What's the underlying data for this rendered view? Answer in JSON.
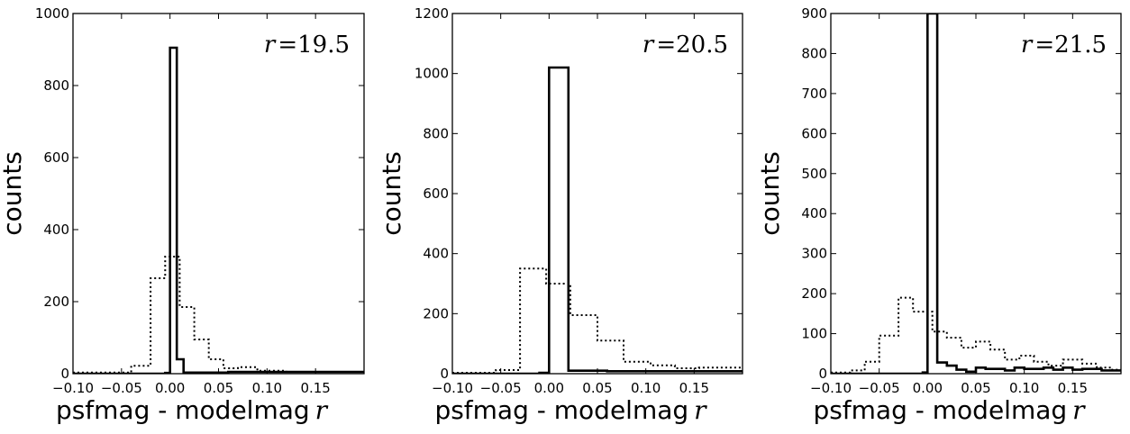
{
  "chart_data": [
    {
      "type": "histogram",
      "annotation": {
        "var": "r",
        "op": "=",
        "value": "19.5"
      },
      "xlabel": {
        "text": "psfmag - modelmag",
        "var": "r"
      },
      "ylabel": "counts",
      "xlim": [
        -0.1,
        0.2
      ],
      "ylim": [
        0,
        1000
      ],
      "xticks": [
        -0.1,
        -0.05,
        0.0,
        0.05,
        0.1,
        0.15
      ],
      "xtick_labels": [
        "−0.10",
        "−0.05",
        "0.00",
        "0.05",
        "0.10",
        "0.15"
      ],
      "yticks": [
        0,
        200,
        400,
        600,
        800,
        1000
      ],
      "ytick_labels": [
        "0",
        "200",
        "400",
        "600",
        "800",
        "1000"
      ],
      "series": [
        {
          "style": "solid",
          "x": [
            -0.1,
            -0.005,
            -0.005,
            0.0,
            0.0,
            0.007,
            0.007,
            0.014,
            0.014,
            0.06,
            0.06,
            0.2
          ],
          "y": [
            0,
            0,
            2,
            2,
            905,
            905,
            40,
            40,
            3,
            3,
            5,
            5
          ]
        },
        {
          "style": "dotted",
          "x": [
            -0.1,
            -0.04,
            -0.04,
            -0.02,
            -0.02,
            -0.005,
            -0.005,
            0.01,
            0.01,
            0.025,
            0.025,
            0.04,
            0.04,
            0.055,
            0.055,
            0.07,
            0.07,
            0.09,
            0.09,
            0.12,
            0.12,
            0.2
          ],
          "y": [
            3,
            3,
            22,
            22,
            265,
            265,
            325,
            325,
            185,
            185,
            95,
            95,
            40,
            40,
            15,
            15,
            18,
            18,
            8,
            8,
            5,
            5
          ]
        }
      ]
    },
    {
      "type": "histogram",
      "annotation": {
        "var": "r",
        "op": "=",
        "value": "20.5"
      },
      "xlabel": {
        "text": "psfmag - modelmag",
        "var": "r"
      },
      "ylabel": "counts",
      "xlim": [
        -0.1,
        0.2
      ],
      "ylim": [
        0,
        1200
      ],
      "xticks": [
        -0.1,
        -0.05,
        0.0,
        0.05,
        0.1,
        0.15
      ],
      "xtick_labels": [
        "−0.10",
        "−0.05",
        "0.00",
        "0.05",
        "0.10",
        "0.15"
      ],
      "yticks": [
        0,
        200,
        400,
        600,
        800,
        1000,
        1200
      ],
      "ytick_labels": [
        "0",
        "200",
        "400",
        "600",
        "800",
        "1000",
        "1200"
      ],
      "series": [
        {
          "style": "solid",
          "x": [
            -0.1,
            -0.01,
            -0.01,
            0.0,
            0.0,
            0.02,
            0.02,
            0.06,
            0.06,
            0.2
          ],
          "y": [
            0,
            0,
            3,
            3,
            1020,
            1020,
            10,
            10,
            8,
            8
          ]
        },
        {
          "style": "dotted",
          "x": [
            -0.1,
            -0.055,
            -0.055,
            -0.03,
            -0.03,
            -0.003,
            -0.003,
            0.022,
            0.022,
            0.05,
            0.05,
            0.077,
            0.077,
            0.105,
            0.105,
            0.13,
            0.13,
            0.155,
            0.155,
            0.2
          ],
          "y": [
            3,
            3,
            12,
            12,
            350,
            350,
            300,
            300,
            195,
            195,
            110,
            110,
            40,
            40,
            28,
            28,
            18,
            18,
            20,
            20
          ]
        }
      ]
    },
    {
      "type": "histogram",
      "annotation": {
        "var": "r",
        "op": "=",
        "value": "21.5"
      },
      "xlabel": {
        "text": "psfmag - modelmag",
        "var": "r"
      },
      "ylabel": "counts",
      "xlim": [
        -0.1,
        0.2
      ],
      "ylim": [
        0,
        900
      ],
      "xticks": [
        -0.1,
        -0.05,
        0.0,
        0.05,
        0.1,
        0.15
      ],
      "xtick_labels": [
        "−0.10",
        "−0.05",
        "0.00",
        "0.05",
        "0.10",
        "0.15"
      ],
      "yticks": [
        0,
        100,
        200,
        300,
        400,
        500,
        600,
        700,
        800,
        900
      ],
      "ytick_labels": [
        "0",
        "100",
        "200",
        "300",
        "400",
        "500",
        "600",
        "700",
        "800",
        "900"
      ],
      "series": [
        {
          "style": "solid",
          "x": [
            -0.1,
            -0.005,
            -0.005,
            0.0,
            0.0,
            0.01,
            0.01,
            0.02,
            0.02,
            0.03,
            0.03,
            0.04,
            0.04,
            0.05,
            0.05,
            0.06,
            0.06,
            0.08,
            0.08,
            0.09,
            0.09,
            0.1,
            0.1,
            0.12,
            0.12,
            0.13,
            0.13,
            0.14,
            0.14,
            0.15,
            0.15,
            0.16,
            0.16,
            0.18,
            0.18,
            0.2
          ],
          "y": [
            0,
            0,
            3,
            3,
            900,
            900,
            28,
            28,
            20,
            20,
            10,
            10,
            5,
            5,
            15,
            15,
            12,
            12,
            8,
            8,
            15,
            15,
            12,
            12,
            15,
            15,
            10,
            10,
            15,
            15,
            10,
            10,
            12,
            12,
            8,
            8
          ]
        },
        {
          "style": "dotted",
          "x": [
            -0.1,
            -0.08,
            -0.08,
            -0.065,
            -0.065,
            -0.05,
            -0.05,
            -0.03,
            -0.03,
            -0.015,
            -0.015,
            0.005,
            0.005,
            0.02,
            0.02,
            0.035,
            0.035,
            0.05,
            0.05,
            0.065,
            0.065,
            0.08,
            0.08,
            0.095,
            0.095,
            0.11,
            0.11,
            0.125,
            0.125,
            0.14,
            0.14,
            0.16,
            0.16,
            0.175,
            0.175,
            0.19,
            0.19,
            0.2
          ],
          "y": [
            3,
            3,
            8,
            8,
            30,
            30,
            95,
            95,
            190,
            190,
            155,
            155,
            105,
            105,
            90,
            90,
            65,
            65,
            80,
            80,
            60,
            60,
            35,
            35,
            45,
            45,
            30,
            30,
            20,
            20,
            35,
            35,
            25,
            25,
            15,
            15,
            10,
            10
          ]
        }
      ]
    }
  ]
}
